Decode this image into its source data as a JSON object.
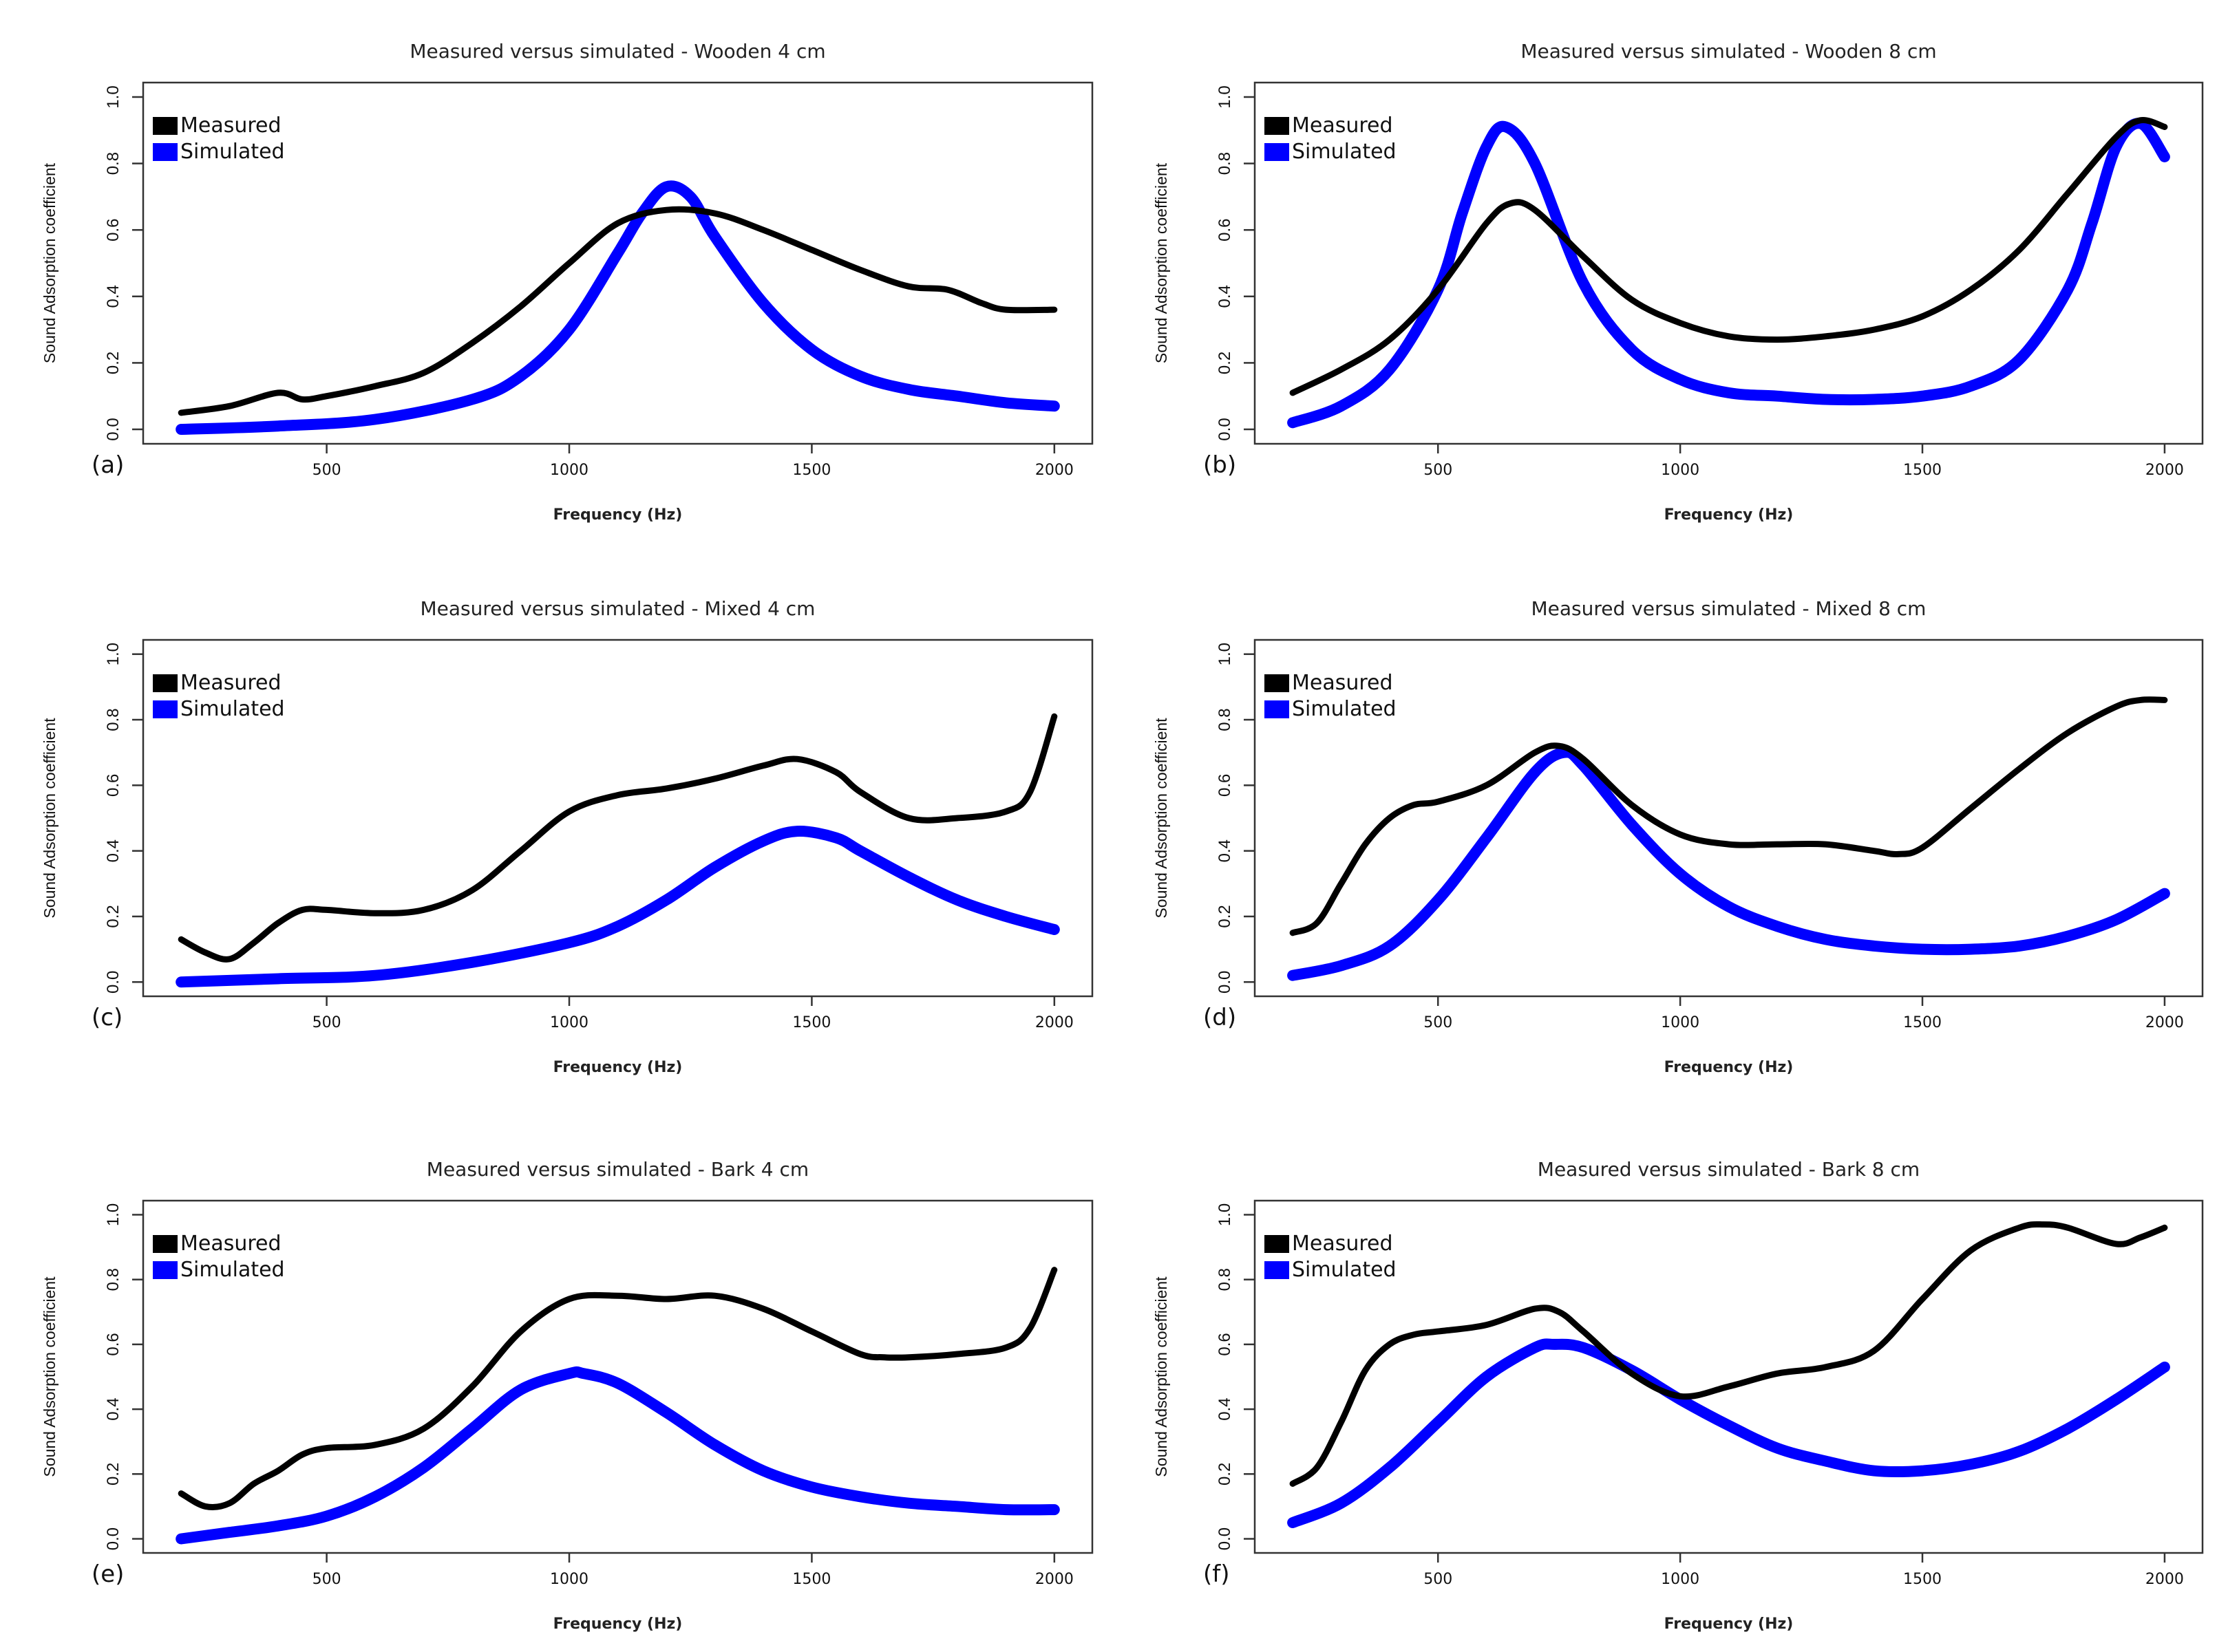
{
  "chart_data": [
    {
      "type": "line",
      "panel_label": "(a)",
      "title": "Measured versus simulated - Wooden 4 cm",
      "xlabel": "Frequency (Hz)",
      "ylabel": "Sound Adsorption coefficient",
      "xlim": [
        200,
        2000
      ],
      "ylim": [
        0,
        1.0
      ],
      "xticks": [
        "500",
        "1000",
        "1500",
        "2000"
      ],
      "yticks": [
        "0.0",
        "0.2",
        "0.4",
        "0.6",
        "0.8",
        "1.0"
      ],
      "series": [
        {
          "name": "Measured",
          "color": "#000000",
          "x": [
            200,
            300,
            400,
            450,
            500,
            600,
            700,
            800,
            900,
            1000,
            1100,
            1200,
            1300,
            1400,
            1500,
            1600,
            1700,
            1780,
            1850,
            1900,
            2000
          ],
          "y": [
            0.05,
            0.07,
            0.11,
            0.09,
            0.1,
            0.13,
            0.17,
            0.26,
            0.37,
            0.5,
            0.62,
            0.66,
            0.65,
            0.6,
            0.54,
            0.48,
            0.43,
            0.42,
            0.38,
            0.36,
            0.36
          ]
        },
        {
          "name": "Simulated",
          "color": "#0000ff",
          "x": [
            200,
            400,
            600,
            800,
            900,
            1000,
            1100,
            1150,
            1200,
            1250,
            1300,
            1400,
            1500,
            1600,
            1700,
            1800,
            1900,
            2000
          ],
          "y": [
            0.0,
            0.01,
            0.03,
            0.09,
            0.16,
            0.3,
            0.53,
            0.65,
            0.73,
            0.7,
            0.58,
            0.38,
            0.24,
            0.16,
            0.12,
            0.1,
            0.08,
            0.07
          ]
        }
      ]
    },
    {
      "type": "line",
      "panel_label": "(b)",
      "title": "Measured versus simulated - Wooden 8 cm",
      "xlabel": "Frequency (Hz)",
      "ylabel": "Sound Adsorption coefficient",
      "xlim": [
        200,
        2000
      ],
      "ylim": [
        0,
        1.0
      ],
      "xticks": [
        "500",
        "1000",
        "1500",
        "2000"
      ],
      "yticks": [
        "0.0",
        "0.2",
        "0.4",
        "0.6",
        "0.8",
        "1.0"
      ],
      "series": [
        {
          "name": "Measured",
          "color": "#000000",
          "x": [
            200,
            300,
            400,
            500,
            600,
            650,
            700,
            800,
            900,
            1000,
            1100,
            1200,
            1300,
            1400,
            1500,
            1600,
            1700,
            1800,
            1900,
            1950,
            2000
          ],
          "y": [
            0.11,
            0.18,
            0.27,
            0.42,
            0.62,
            0.68,
            0.66,
            0.52,
            0.39,
            0.32,
            0.28,
            0.27,
            0.28,
            0.3,
            0.34,
            0.42,
            0.54,
            0.71,
            0.88,
            0.93,
            0.91
          ]
        },
        {
          "name": "Simulated",
          "color": "#0000ff",
          "x": [
            200,
            300,
            400,
            500,
            550,
            600,
            640,
            700,
            800,
            900,
            1000,
            1100,
            1200,
            1300,
            1400,
            1500,
            1600,
            1700,
            1800,
            1850,
            1900,
            1950,
            2000
          ],
          "y": [
            0.02,
            0.07,
            0.18,
            0.42,
            0.65,
            0.85,
            0.91,
            0.8,
            0.44,
            0.24,
            0.15,
            0.11,
            0.1,
            0.09,
            0.09,
            0.1,
            0.13,
            0.21,
            0.42,
            0.62,
            0.85,
            0.92,
            0.82
          ]
        }
      ]
    },
    {
      "type": "line",
      "panel_label": "(c)",
      "title": "Measured versus simulated - Mixed 4 cm",
      "xlabel": "Frequency (Hz)",
      "ylabel": "Sound Adsorption coefficient",
      "xlim": [
        200,
        2000
      ],
      "ylim": [
        0,
        1.0
      ],
      "xticks": [
        "500",
        "1000",
        "1500",
        "2000"
      ],
      "yticks": [
        "0.0",
        "0.2",
        "0.4",
        "0.6",
        "0.8",
        "1.0"
      ],
      "series": [
        {
          "name": "Measured",
          "color": "#000000",
          "x": [
            200,
            250,
            300,
            350,
            400,
            450,
            500,
            600,
            700,
            800,
            900,
            1000,
            1100,
            1200,
            1300,
            1400,
            1470,
            1550,
            1600,
            1700,
            1800,
            1900,
            1950,
            2000
          ],
          "y": [
            0.13,
            0.09,
            0.07,
            0.12,
            0.18,
            0.22,
            0.22,
            0.21,
            0.22,
            0.28,
            0.4,
            0.52,
            0.57,
            0.59,
            0.62,
            0.66,
            0.68,
            0.64,
            0.58,
            0.5,
            0.5,
            0.52,
            0.58,
            0.81
          ]
        },
        {
          "name": "Simulated",
          "color": "#0000ff",
          "x": [
            200,
            400,
            600,
            800,
            1000,
            1100,
            1200,
            1300,
            1400,
            1470,
            1550,
            1600,
            1700,
            1800,
            1900,
            2000
          ],
          "y": [
            0.0,
            0.01,
            0.02,
            0.06,
            0.12,
            0.17,
            0.25,
            0.35,
            0.43,
            0.46,
            0.44,
            0.4,
            0.32,
            0.25,
            0.2,
            0.16
          ]
        }
      ]
    },
    {
      "type": "line",
      "panel_label": "(d)",
      "title": "Measured versus simulated - Mixed 8 cm",
      "xlabel": "Frequency  (Hz)",
      "ylabel": "Sound Adsorption coefficient",
      "xlim": [
        200,
        2000
      ],
      "ylim": [
        0,
        1.0
      ],
      "xticks": [
        "500",
        "1000",
        "1500",
        "2000"
      ],
      "yticks": [
        "0.0",
        "0.2",
        "0.4",
        "0.6",
        "0.8",
        "1.0"
      ],
      "series": [
        {
          "name": "Measured",
          "color": "#000000",
          "x": [
            200,
            250,
            300,
            350,
            400,
            450,
            500,
            600,
            700,
            750,
            800,
            900,
            1000,
            1100,
            1200,
            1300,
            1400,
            1450,
            1500,
            1600,
            1700,
            1800,
            1900,
            1950,
            2000
          ],
          "y": [
            0.15,
            0.18,
            0.3,
            0.42,
            0.5,
            0.54,
            0.55,
            0.6,
            0.7,
            0.72,
            0.68,
            0.54,
            0.45,
            0.42,
            0.42,
            0.42,
            0.4,
            0.39,
            0.41,
            0.53,
            0.65,
            0.76,
            0.84,
            0.86,
            0.86
          ]
        },
        {
          "name": "Simulated",
          "color": "#0000ff",
          "x": [
            200,
            300,
            400,
            500,
            600,
            700,
            760,
            800,
            900,
            1000,
            1100,
            1200,
            1300,
            1400,
            1500,
            1600,
            1700,
            1800,
            1900,
            2000
          ],
          "y": [
            0.02,
            0.05,
            0.11,
            0.25,
            0.44,
            0.64,
            0.7,
            0.66,
            0.48,
            0.33,
            0.23,
            0.17,
            0.13,
            0.11,
            0.1,
            0.1,
            0.11,
            0.14,
            0.19,
            0.27
          ]
        }
      ]
    },
    {
      "type": "line",
      "panel_label": "(e)",
      "title": "Measured versus simulated - Bark 4 cm",
      "xlabel": "Frequency (Hz)",
      "ylabel": "Sound Adsorption coefficient",
      "xlim": [
        200,
        2000
      ],
      "ylim": [
        0,
        1.0
      ],
      "xticks": [
        "500",
        "1000",
        "1500",
        "2000"
      ],
      "yticks": [
        "0.0",
        "0.2",
        "0.4",
        "0.6",
        "0.8",
        "1.0"
      ],
      "series": [
        {
          "name": "Measured",
          "color": "#000000",
          "x": [
            200,
            250,
            300,
            350,
            400,
            450,
            500,
            600,
            700,
            800,
            900,
            1000,
            1100,
            1200,
            1300,
            1400,
            1500,
            1600,
            1650,
            1700,
            1800,
            1900,
            1950,
            2000
          ],
          "y": [
            0.14,
            0.1,
            0.11,
            0.17,
            0.21,
            0.26,
            0.28,
            0.29,
            0.34,
            0.47,
            0.64,
            0.74,
            0.75,
            0.74,
            0.75,
            0.71,
            0.64,
            0.57,
            0.56,
            0.56,
            0.57,
            0.59,
            0.65,
            0.83
          ]
        },
        {
          "name": "Simulated",
          "color": "#0000ff",
          "x": [
            200,
            300,
            400,
            500,
            600,
            700,
            800,
            900,
            1000,
            1030,
            1100,
            1200,
            1300,
            1400,
            1500,
            1600,
            1700,
            1800,
            1900,
            2000
          ],
          "y": [
            0.0,
            0.02,
            0.04,
            0.07,
            0.13,
            0.22,
            0.34,
            0.46,
            0.51,
            0.51,
            0.48,
            0.39,
            0.29,
            0.21,
            0.16,
            0.13,
            0.11,
            0.1,
            0.09,
            0.09
          ]
        }
      ]
    },
    {
      "type": "line",
      "panel_label": "(f)",
      "title": "Measured versus simulated - Bark 8 cm",
      "xlabel": "Frequency (Hz)",
      "ylabel": "Sound Adsorption coefficient",
      "xlim": [
        200,
        2000
      ],
      "ylim": [
        0,
        1.0
      ],
      "xticks": [
        "500",
        "1000",
        "1500",
        "2000"
      ],
      "yticks": [
        "0.0",
        "0.2",
        "0.4",
        "0.6",
        "0.8",
        "1.0"
      ],
      "series": [
        {
          "name": "Measured",
          "color": "#000000",
          "x": [
            200,
            250,
            300,
            350,
            400,
            450,
            500,
            600,
            700,
            750,
            800,
            900,
            1000,
            1100,
            1200,
            1300,
            1400,
            1500,
            1600,
            1700,
            1750,
            1800,
            1900,
            1950,
            2000
          ],
          "y": [
            0.17,
            0.22,
            0.36,
            0.52,
            0.6,
            0.63,
            0.64,
            0.66,
            0.71,
            0.7,
            0.64,
            0.51,
            0.44,
            0.47,
            0.51,
            0.53,
            0.58,
            0.74,
            0.89,
            0.96,
            0.97,
            0.96,
            0.91,
            0.93,
            0.96
          ]
        },
        {
          "name": "Simulated",
          "color": "#0000ff",
          "x": [
            200,
            300,
            400,
            500,
            600,
            700,
            740,
            800,
            900,
            1000,
            1100,
            1200,
            1300,
            1400,
            1500,
            1600,
            1700,
            1800,
            1900,
            2000
          ],
          "y": [
            0.05,
            0.11,
            0.22,
            0.36,
            0.5,
            0.59,
            0.6,
            0.59,
            0.52,
            0.43,
            0.35,
            0.28,
            0.24,
            0.21,
            0.21,
            0.23,
            0.27,
            0.34,
            0.43,
            0.53
          ]
        }
      ]
    }
  ]
}
